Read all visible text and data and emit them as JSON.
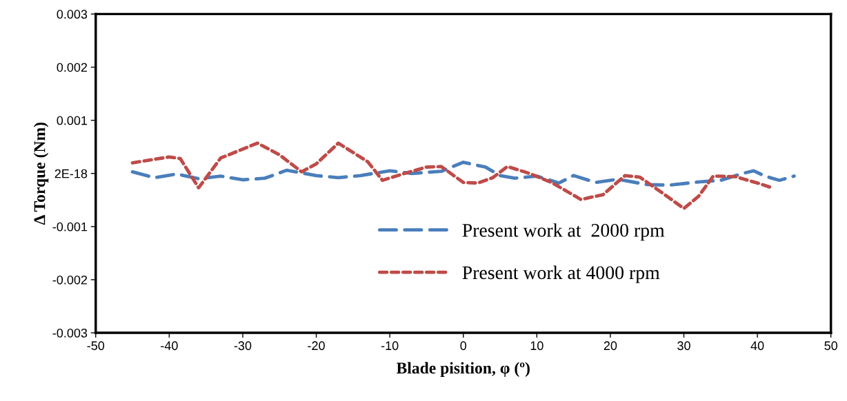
{
  "chart_data": {
    "type": "line",
    "xlabel": "Blade pisition, φ (º)",
    "ylabel": "Δ Torque (Nm)",
    "xlim": [
      -50,
      50
    ],
    "xticks": [
      -50,
      -40,
      -30,
      -20,
      -10,
      0,
      10,
      20,
      30,
      40,
      50
    ],
    "ylim": [
      -0.003,
      0.003
    ],
    "yticks": [
      {
        "value": 0.003,
        "label": "0.003"
      },
      {
        "value": 0.002,
        "label": "0.002"
      },
      {
        "value": 0.001,
        "label": "0.001"
      },
      {
        "value": 0,
        "label": "2E-18"
      },
      {
        "value": -0.001,
        "label": "-0.001"
      },
      {
        "value": -0.002,
        "label": "-0.002"
      },
      {
        "value": -0.003,
        "label": "-0.003"
      }
    ],
    "grid": false,
    "legend": "bottom",
    "marker": "none",
    "series": [
      {
        "name": "Present work at  2000 rpm",
        "color": "#4a7ebb",
        "line_style": "dashed",
        "x": [
          -45,
          -42,
          -39,
          -36,
          -33,
          -30,
          -27,
          -24,
          -20,
          -17,
          -14,
          -10,
          -7,
          -3,
          0,
          3,
          5,
          7,
          10,
          13,
          15,
          18,
          21,
          25,
          28,
          32,
          35,
          38,
          39.5,
          41,
          43,
          45
        ],
        "values": [
          3e-05,
          -8e-05,
          -1e-05,
          -0.0001,
          -5e-05,
          -0.00012,
          -9e-05,
          6e-05,
          -4e-05,
          -8e-05,
          -4e-05,
          5e-05,
          0,
          4e-05,
          0.00021,
          0.00012,
          -4e-05,
          -9e-05,
          -5e-05,
          -0.00018,
          -4e-05,
          -0.00017,
          -0.00011,
          -0.00021,
          -0.00022,
          -0.00016,
          -0.00013,
          0,
          5e-05,
          -5e-05,
          -0.00013,
          -5e-05
        ]
      },
      {
        "name": "Present work at 4000 rpm",
        "color": "#be4b48",
        "line_style": "dotted",
        "x": [
          -45,
          -40,
          -38.5,
          -36,
          -33,
          -28,
          -25,
          -22,
          -20,
          -17,
          -13,
          -11,
          -8,
          -5,
          -3,
          0,
          2,
          4,
          6,
          9,
          12,
          16,
          19,
          22,
          24,
          27,
          30,
          32,
          34,
          37,
          40,
          42
        ],
        "values": [
          0.0002,
          0.00031,
          0.00028,
          -0.00027,
          0.00029,
          0.00057,
          0.00035,
          3e-05,
          0.00018,
          0.00057,
          0.00022,
          -0.00013,
          0,
          0.00012,
          0.00013,
          -0.00017,
          -0.00018,
          -8e-05,
          0.00013,
          0,
          -0.00017,
          -0.00049,
          -0.0004,
          -4e-05,
          -7e-05,
          -0.00036,
          -0.00066,
          -0.00043,
          -5e-05,
          -6e-05,
          -0.00018,
          -0.00027
        ]
      }
    ]
  }
}
